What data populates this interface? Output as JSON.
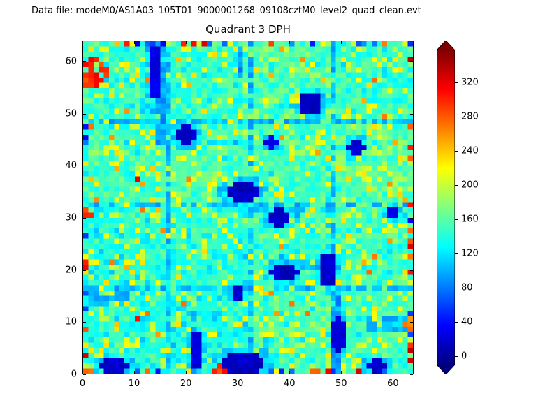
{
  "header": {
    "datafile_label": "Data file: modeM0/AS1A03_105T01_9000001268_09108cztM0_level2_quad_clean.evt"
  },
  "chart_data": {
    "type": "heatmap",
    "title": "Quadrant 3 DPH",
    "grid": {
      "nx": 64,
      "ny": 64
    },
    "xlim": [
      0,
      64
    ],
    "ylim": [
      0,
      64
    ],
    "xticks": [
      0,
      10,
      20,
      30,
      40,
      50,
      60
    ],
    "yticks": [
      0,
      10,
      20,
      30,
      40,
      50,
      60
    ],
    "colormap": "jet",
    "colorbar": {
      "ticks": [
        0,
        40,
        80,
        120,
        160,
        200,
        240,
        280,
        320
      ],
      "vmin": -10,
      "vmax": 358,
      "extend": "both",
      "under_color": "#000080",
      "over_color": "#800000"
    },
    "value_model": {
      "seed": 1268,
      "background_mean": 148,
      "background_noise": 18,
      "speckle_fraction": 0.16,
      "speckle_range": [
        185,
        232
      ],
      "hot_fraction": 0.012,
      "hot_range": [
        235,
        275
      ],
      "red_fraction": 0.0025,
      "red_range": [
        300,
        345
      ],
      "module_lines": [
        16,
        32,
        48
      ],
      "line_value": 102,
      "line_fraction": 0.55,
      "edge_hot_fraction": 0.12,
      "edge_cold_fraction": 0.12,
      "low_blobs": [
        {
          "x": 13.5,
          "y": 57.5,
          "rx": 1.5,
          "ry": 5.5,
          "value": 18
        },
        {
          "x": 19.5,
          "y": 45.5,
          "rx": 2.2,
          "ry": 2.0,
          "value": 8
        },
        {
          "x": 30.5,
          "y": 34.5,
          "rx": 3.2,
          "ry": 2.0,
          "value": 5
        },
        {
          "x": 37.5,
          "y": 29.5,
          "rx": 2.6,
          "ry": 1.7,
          "value": 7
        },
        {
          "x": 38.5,
          "y": 19.0,
          "rx": 2.6,
          "ry": 2.0,
          "value": 7
        },
        {
          "x": 47.0,
          "y": 19.5,
          "rx": 1.5,
          "ry": 3.4,
          "value": 9
        },
        {
          "x": 43.5,
          "y": 51.5,
          "rx": 2.5,
          "ry": 2.0,
          "value": 5
        },
        {
          "x": 30.5,
          "y": 1.5,
          "rx": 4.2,
          "ry": 2.1,
          "value": 5
        },
        {
          "x": 5.5,
          "y": 1.0,
          "rx": 2.8,
          "ry": 1.5,
          "value": 8
        },
        {
          "x": 56.5,
          "y": 1.0,
          "rx": 2.2,
          "ry": 1.3,
          "value": 9
        },
        {
          "x": 52.5,
          "y": 43.0,
          "rx": 1.7,
          "ry": 1.6,
          "value": 14
        },
        {
          "x": 29.5,
          "y": 15.0,
          "rx": 1.4,
          "ry": 1.3,
          "value": 12
        },
        {
          "x": 21.5,
          "y": 4.0,
          "rx": 1.1,
          "ry": 3.8,
          "value": 16
        },
        {
          "x": 49.0,
          "y": 7.0,
          "rx": 1.3,
          "ry": 3.6,
          "value": 14
        },
        {
          "x": 36.0,
          "y": 44.0,
          "rx": 1.2,
          "ry": 1.1,
          "value": 16
        },
        {
          "x": 59.5,
          "y": 30.5,
          "rx": 1.2,
          "ry": 1.1,
          "value": 18
        }
      ],
      "blue_streaks_v": [
        {
          "x": 14,
          "y0": 44,
          "y1": 63,
          "w": 2,
          "value": 95
        },
        {
          "x": 21,
          "y0": 0,
          "y1": 12,
          "w": 1,
          "value": 100
        },
        {
          "x": 48,
          "y0": 0,
          "y1": 14,
          "w": 2,
          "value": 95
        },
        {
          "x": 30,
          "y0": 56,
          "y1": 63,
          "w": 1,
          "value": 92
        },
        {
          "x": 47,
          "y0": 24,
          "y1": 33,
          "w": 1,
          "value": 108
        },
        {
          "x": 35,
          "y0": 0,
          "y1": 6,
          "w": 1,
          "value": 105
        }
      ],
      "blue_streaks_h": [
        {
          "y": 48,
          "x0": 6,
          "x1": 30,
          "h": 1,
          "value": 110
        },
        {
          "y": 31,
          "x0": 33,
          "x1": 44,
          "h": 1,
          "value": 105
        },
        {
          "y": 20,
          "x0": 36,
          "x1": 45,
          "h": 2,
          "value": 108
        },
        {
          "y": 13,
          "x0": 0,
          "x1": 8,
          "h": 3,
          "value": 102
        },
        {
          "y": 8,
          "x0": 55,
          "x1": 63,
          "h": 3,
          "value": 108
        },
        {
          "y": 44,
          "x0": 24,
          "x1": 33,
          "h": 1,
          "value": 112
        }
      ],
      "hot_spots": [
        {
          "x": 1.5,
          "y": 57.5,
          "r": 2.6,
          "value": 300
        },
        {
          "x": 0.5,
          "y": 30.0,
          "r": 0.9,
          "value": 315
        },
        {
          "x": 63.0,
          "y": 47.0,
          "r": 0.9,
          "value": 280
        },
        {
          "x": 26.0,
          "y": 0.0,
          "r": 1.4,
          "value": 295
        },
        {
          "x": 44.5,
          "y": 0.0,
          "r": 0.9,
          "value": 265
        },
        {
          "x": 63.0,
          "y": 9.0,
          "r": 1.1,
          "value": 275
        },
        {
          "x": 36.0,
          "y": 63.0,
          "r": 0.9,
          "value": 285
        },
        {
          "x": 0.0,
          "y": 8.0,
          "r": 0.9,
          "value": 295
        },
        {
          "x": 10.0,
          "y": 37.0,
          "r": 0.8,
          "value": 320
        }
      ]
    }
  }
}
